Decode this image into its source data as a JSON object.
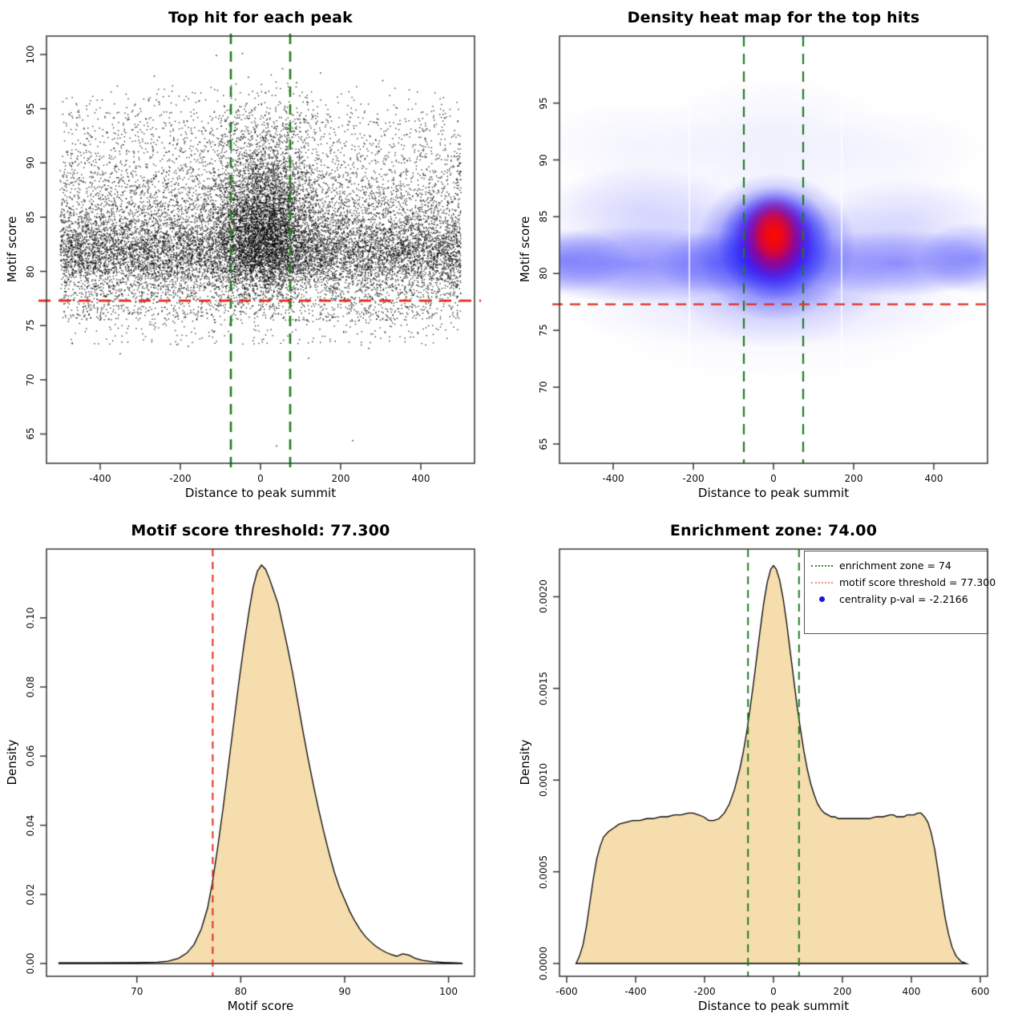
{
  "page": {
    "background": "#ffffff"
  },
  "colors": {
    "threshold_red": "#e02c1f",
    "zone_green": "#1d7c1d",
    "area_fill_wheat": "#f5ddad",
    "curve_stroke": "#000000",
    "scatter_dot": "#000000",
    "heat_blue": "#0000ff",
    "heat_red": "#ff0000",
    "box_stroke": "#333333",
    "legend_red_swatch": "#f08c82",
    "legend_green_swatch": "#2e8b2e",
    "legend_blue_dot": "#1616e8"
  },
  "chart_data": [
    {
      "id": "top-hit-scatter",
      "type": "scatter",
      "title": "Top hit for each peak",
      "xlabel": "Distance to peak summit",
      "ylabel": "Motif score",
      "xlim": [
        -534,
        534
      ],
      "ylim": [
        62.3,
        101.7
      ],
      "xticks": [
        -400,
        -200,
        0,
        200,
        400
      ],
      "xtick_labels": [
        "-400",
        "-200",
        "0",
        "200",
        "400"
      ],
      "yticks": [
        65,
        70,
        75,
        80,
        85,
        90,
        95,
        100
      ],
      "ytick_labels": [
        "65",
        "70",
        "75",
        "80",
        "85",
        "90",
        "95",
        "100"
      ],
      "grid": false,
      "annotations": {
        "vlines": {
          "x": [
            -74,
            74
          ],
          "color": "zone_green",
          "style": "dashed"
        },
        "hline": {
          "y": 77.3,
          "color": "threshold_red",
          "style": "dashed"
        }
      },
      "point_cloud": {
        "marker": "point",
        "color": "#000000",
        "n_background": 14000,
        "background_x_range": [
          -500,
          500
        ],
        "background_y_mixture": [
          [
            0.5,
            81.4,
            1.8
          ],
          [
            0.24,
            84.0,
            2.5
          ],
          [
            0.1,
            87.5,
            2.2
          ],
          [
            0.045,
            91.0,
            2.0
          ],
          [
            0.07,
            "u",
            75.5,
            78.8
          ],
          [
            0.015,
            "u",
            73.2,
            76.2
          ],
          [
            0.03,
            94.0,
            1.6
          ]
        ],
        "background_y_clamp": [
          72.6,
          97.3
        ],
        "n_center": 4600,
        "center_x_mean": 8,
        "center_x_sd_core": 58,
        "center_x_sd_wide": 105,
        "center_x_wide_fraction": 0.2,
        "center_x_clamp": 290,
        "center_y_mixture": [
          [
            0.5,
            83.4,
            2.4
          ],
          [
            0.28,
            86.2,
            2.8
          ],
          [
            0.13,
            89.4,
            2.7
          ],
          [
            0.09,
            80.2,
            1.6
          ]
        ],
        "center_y_clamp": [
          75.5,
          98.0
        ],
        "n_high_halo": 130,
        "outliers_high": [
          [
            -110,
            99.9
          ],
          [
            -45,
            100.1
          ],
          [
            55,
            98.7
          ],
          [
            150,
            98.3
          ],
          [
            -265,
            98.0
          ],
          [
            305,
            97.6
          ],
          [
            -30,
            97.9
          ],
          [
            90,
            97.4
          ]
        ],
        "outliers_low": [
          [
            40,
            63.9
          ],
          [
            230,
            64.4
          ],
          [
            -350,
            72.4
          ],
          [
            120,
            72.0
          ],
          [
            -180,
            73.1
          ],
          [
            270,
            72.9
          ],
          [
            -470,
            73.4
          ]
        ]
      }
    },
    {
      "id": "top-hit-heatmap",
      "type": "heatmap",
      "title": "Density heat map for the top hits",
      "xlabel": "Distance to peak summit",
      "ylabel": "Motif score",
      "xlim": [
        -534,
        534
      ],
      "ylim": [
        63.3,
        100.9
      ],
      "xticks": [
        -400,
        -200,
        0,
        200,
        400
      ],
      "xtick_labels": [
        "-400",
        "-200",
        "0",
        "200",
        "400"
      ],
      "yticks": [
        65,
        70,
        75,
        80,
        85,
        90,
        95
      ],
      "ytick_labels": [
        "65",
        "70",
        "75",
        "80",
        "85",
        "90",
        "95"
      ],
      "colormap": [
        "white",
        "blue",
        "red"
      ],
      "hotspot": {
        "x": 0,
        "y": 83
      },
      "band_center_score": 81.5,
      "white_gaps_x": [
        -210,
        170
      ],
      "annotations": {
        "vlines": {
          "x": [
            -74,
            74
          ],
          "color": "zone_green",
          "style": "dashed"
        },
        "hline": {
          "y": 77.3,
          "color": "threshold_red",
          "style": "dashed"
        }
      }
    },
    {
      "id": "motif-score-density",
      "type": "area",
      "title": "Motif score threshold: 77.300",
      "xlabel": "Motif score",
      "ylabel": "Density",
      "xlim": [
        61.3,
        102.5
      ],
      "ylim": [
        -0.0037,
        0.1199
      ],
      "xticks": [
        70,
        80,
        90,
        100
      ],
      "xtick_labels": [
        "70",
        "80",
        "90",
        "100"
      ],
      "yticks": [
        0,
        0.02,
        0.04,
        0.06,
        0.08,
        0.1
      ],
      "ytick_labels": [
        "0.00",
        "0.02",
        "0.04",
        "0.06",
        "0.08",
        "0.10"
      ],
      "annotations": {
        "vline": {
          "x": 77.3,
          "color": "threshold_red",
          "style": "dashed"
        }
      },
      "curve": [
        [
          62.5,
          0.0002
        ],
        [
          66,
          0.0002
        ],
        [
          70,
          0.00025
        ],
        [
          72,
          0.0004
        ],
        [
          73,
          0.0007
        ],
        [
          74,
          0.0015
        ],
        [
          74.8,
          0.003
        ],
        [
          75.5,
          0.0055
        ],
        [
          76.2,
          0.01
        ],
        [
          76.8,
          0.016
        ],
        [
          77.3,
          0.024
        ],
        [
          77.8,
          0.034
        ],
        [
          78.3,
          0.045
        ],
        [
          78.8,
          0.057
        ],
        [
          79.3,
          0.069
        ],
        [
          79.8,
          0.081
        ],
        [
          80.3,
          0.092
        ],
        [
          80.8,
          0.102
        ],
        [
          81.2,
          0.109
        ],
        [
          81.6,
          0.1135
        ],
        [
          82,
          0.1153
        ],
        [
          82.4,
          0.114
        ],
        [
          82.8,
          0.111
        ],
        [
          83.2,
          0.1075
        ],
        [
          83.6,
          0.104
        ],
        [
          84,
          0.0985
        ],
        [
          84.5,
          0.0915
        ],
        [
          85,
          0.084
        ],
        [
          85.5,
          0.0755
        ],
        [
          86,
          0.067
        ],
        [
          86.5,
          0.059
        ],
        [
          87,
          0.0515
        ],
        [
          87.5,
          0.0445
        ],
        [
          88,
          0.038
        ],
        [
          88.5,
          0.032
        ],
        [
          89,
          0.0265
        ],
        [
          89.5,
          0.022
        ],
        [
          90,
          0.0185
        ],
        [
          90.5,
          0.015
        ],
        [
          91,
          0.0122
        ],
        [
          91.5,
          0.0098
        ],
        [
          92,
          0.0078
        ],
        [
          92.5,
          0.0063
        ],
        [
          93,
          0.005
        ],
        [
          93.5,
          0.004
        ],
        [
          94,
          0.0032
        ],
        [
          94.5,
          0.0026
        ],
        [
          95,
          0.0021
        ],
        [
          95.6,
          0.0028
        ],
        [
          96.2,
          0.0024
        ],
        [
          96.8,
          0.0015
        ],
        [
          97.5,
          0.0009
        ],
        [
          98.5,
          0.0005
        ],
        [
          99.5,
          0.0003
        ],
        [
          100.5,
          0.0002
        ],
        [
          101.3,
          0.0001
        ]
      ]
    },
    {
      "id": "distance-density",
      "type": "area",
      "title": "Enrichment zone: 74.00",
      "xlabel": "Distance to peak summit",
      "ylabel": "Density",
      "xlim": [
        -621,
        621
      ],
      "ylim": [
        -7e-05,
        0.00226
      ],
      "xticks": [
        -600,
        -400,
        -200,
        0,
        200,
        400,
        600
      ],
      "xtick_labels": [
        "-600",
        "-400",
        "-200",
        "0",
        "200",
        "400",
        "600"
      ],
      "yticks": [
        0,
        0.0005,
        0.001,
        0.0015,
        0.002
      ],
      "ytick_labels": [
        "0.0000",
        "0.0005",
        "0.0010",
        "0.0015",
        "0.0020"
      ],
      "annotations": {
        "vlines": {
          "x": [
            -74,
            74
          ],
          "color": "zone_green",
          "style": "dashed"
        }
      },
      "legend": {
        "position": "topright",
        "items": [
          {
            "swatch": "dotted-line",
            "color_key": "legend_green_swatch",
            "label": "enrichment zone = 74"
          },
          {
            "swatch": "dotted-line",
            "color_key": "legend_red_swatch",
            "label": "motif score threshold = 77.300"
          },
          {
            "swatch": "dot",
            "color_key": "legend_blue_dot",
            "label": "centrality p-val = -2.2166"
          }
        ]
      },
      "curve": [
        [
          -573,
          0
        ],
        [
          -563,
          4e-05
        ],
        [
          -553,
          0.0001
        ],
        [
          -543,
          0.0002
        ],
        [
          -533,
          0.00033
        ],
        [
          -523,
          0.00046
        ],
        [
          -513,
          0.00057
        ],
        [
          -503,
          0.00064
        ],
        [
          -493,
          0.00069
        ],
        [
          -478,
          0.00072
        ],
        [
          -463,
          0.00074
        ],
        [
          -448,
          0.00076
        ],
        [
          -428,
          0.00077
        ],
        [
          -408,
          0.00078
        ],
        [
          -388,
          0.00078
        ],
        [
          -368,
          0.00079
        ],
        [
          -348,
          0.00079
        ],
        [
          -328,
          0.0008
        ],
        [
          -308,
          0.0008
        ],
        [
          -288,
          0.00081
        ],
        [
          -268,
          0.00081
        ],
        [
          -248,
          0.00082
        ],
        [
          -233,
          0.00082
        ],
        [
          -218,
          0.00081
        ],
        [
          -203,
          0.0008
        ],
        [
          -188,
          0.00078
        ],
        [
          -173,
          0.00078
        ],
        [
          -158,
          0.00079
        ],
        [
          -143,
          0.00082
        ],
        [
          -128,
          0.00087
        ],
        [
          -113,
          0.00095
        ],
        [
          -98,
          0.00106
        ],
        [
          -88,
          0.00115
        ],
        [
          -78,
          0.00126
        ],
        [
          -68,
          0.00139
        ],
        [
          -58,
          0.00153
        ],
        [
          -48,
          0.00168
        ],
        [
          -38,
          0.00183
        ],
        [
          -28,
          0.00197
        ],
        [
          -18,
          0.00208
        ],
        [
          -8,
          0.00215
        ],
        [
          0,
          0.00217
        ],
        [
          8,
          0.00215
        ],
        [
          18,
          0.00209
        ],
        [
          28,
          0.00199
        ],
        [
          38,
          0.00186
        ],
        [
          48,
          0.00171
        ],
        [
          58,
          0.00156
        ],
        [
          68,
          0.00141
        ],
        [
          78,
          0.00128
        ],
        [
          88,
          0.00116
        ],
        [
          98,
          0.00106
        ],
        [
          108,
          0.00098
        ],
        [
          118,
          0.00092
        ],
        [
          128,
          0.00087
        ],
        [
          138,
          0.00084
        ],
        [
          148,
          0.00082
        ],
        [
          158,
          0.00081
        ],
        [
          168,
          0.0008
        ],
        [
          178,
          0.0008
        ],
        [
          188,
          0.00079
        ],
        [
          198,
          0.00079
        ],
        [
          218,
          0.00079
        ],
        [
          238,
          0.00079
        ],
        [
          258,
          0.00079
        ],
        [
          278,
          0.00079
        ],
        [
          298,
          0.0008
        ],
        [
          318,
          0.0008
        ],
        [
          338,
          0.00081
        ],
        [
          348,
          0.00081
        ],
        [
          358,
          0.0008
        ],
        [
          368,
          0.0008
        ],
        [
          378,
          0.0008
        ],
        [
          388,
          0.00081
        ],
        [
          398,
          0.00081
        ],
        [
          408,
          0.00081
        ],
        [
          418,
          0.00082
        ],
        [
          428,
          0.00082
        ],
        [
          438,
          0.0008
        ],
        [
          448,
          0.00077
        ],
        [
          458,
          0.00071
        ],
        [
          468,
          0.00062
        ],
        [
          478,
          0.0005
        ],
        [
          488,
          0.00037
        ],
        [
          498,
          0.00025
        ],
        [
          508,
          0.00016
        ],
        [
          518,
          9e-05
        ],
        [
          530,
          4e-05
        ],
        [
          545,
          1e-05
        ],
        [
          560,
          0
        ]
      ]
    }
  ]
}
